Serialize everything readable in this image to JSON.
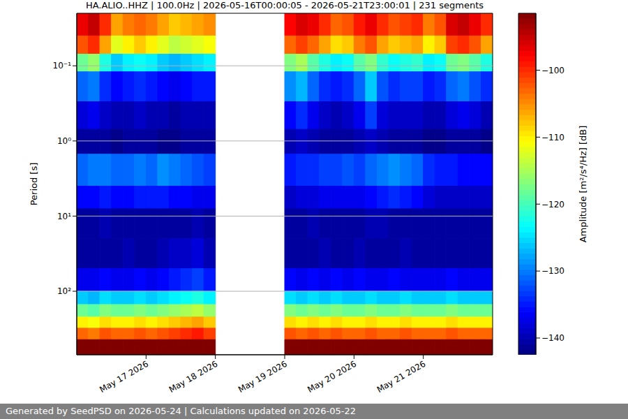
{
  "chart_data": {
    "type": "heatmap",
    "title": "HA.ALIO..HHZ | 100.0Hz | 2026-05-16T00:00:05 - 2026-05-21T23:00:01 | 231 segments",
    "ylabel": "Period [s]",
    "log": "y",
    "grid": true,
    "xlim": [
      "2026-05-16T00:00:00Z",
      "2026-05-22T00:00:00Z"
    ],
    "xticks": [
      {
        "value": "2026-05-17T00:00:00Z",
        "label": "May 17 2026"
      },
      {
        "value": "2026-05-18T00:00:00Z",
        "label": "May 18 2026"
      },
      {
        "value": "2026-05-19T00:00:00Z",
        "label": "May 19 2026"
      },
      {
        "value": "2026-05-20T00:00:00Z",
        "label": "May 20 2026"
      },
      {
        "value": "2026-05-21T00:00:00Z",
        "label": "May 21 2026"
      }
    ],
    "ylim": [
      0.02,
      700
    ],
    "yticks": [
      {
        "value": 0.1,
        "label": "10⁻¹"
      },
      {
        "value": 1,
        "label": "10⁰"
      },
      {
        "value": 10,
        "label": "10¹"
      },
      {
        "value": 100,
        "label": "10²"
      }
    ],
    "x_edges": [
      "2026-05-16T00:00:00Z",
      "2026-05-16T04:00:00Z",
      "2026-05-16T08:00:00Z",
      "2026-05-16T12:00:00Z",
      "2026-05-16T16:00:00Z",
      "2026-05-16T20:00:00Z",
      "2026-05-17T00:00:00Z",
      "2026-05-17T04:00:00Z",
      "2026-05-17T08:00:00Z",
      "2026-05-17T12:00:00Z",
      "2026-05-17T16:00:00Z",
      "2026-05-17T20:00:00Z",
      "2026-05-18T00:00:00Z",
      "2026-05-18T04:00:00Z",
      "2026-05-18T08:00:00Z",
      "2026-05-18T12:00:00Z",
      "2026-05-18T16:00:00Z",
      "2026-05-18T20:00:00Z",
      "2026-05-19T00:00:00Z",
      "2026-05-19T04:00:00Z",
      "2026-05-19T08:00:00Z",
      "2026-05-19T12:00:00Z",
      "2026-05-19T16:00:00Z",
      "2026-05-19T20:00:00Z",
      "2026-05-20T00:00:00Z",
      "2026-05-20T04:00:00Z",
      "2026-05-20T08:00:00Z",
      "2026-05-20T12:00:00Z",
      "2026-05-20T16:00:00Z",
      "2026-05-20T20:00:00Z",
      "2026-05-21T00:00:00Z",
      "2026-05-21T04:00:00Z",
      "2026-05-21T08:00:00Z",
      "2026-05-21T12:00:00Z",
      "2026-05-21T16:00:00Z",
      "2026-05-21T20:00:00Z",
      "2026-05-22T00:00:00Z"
    ],
    "y_edges": [
      0.02,
      0.04,
      0.07,
      0.12,
      0.3,
      0.7,
      1.5,
      4,
      8,
      20,
      50,
      100,
      150,
      220,
      310,
      440,
      700
    ],
    "cells": [
      [
        -97,
        -95,
        -100,
        -106,
        -104,
        -103,
        -104,
        -106,
        -108,
        -107,
        -106,
        -105,
        null,
        null,
        null,
        null,
        null,
        null,
        -98,
        -96,
        -97,
        -100,
        -103,
        -102,
        -99,
        -97,
        -100,
        -102,
        -101,
        -100,
        -104,
        -102,
        -96,
        -95,
        -97,
        -100
      ],
      [
        -102,
        -100,
        -106,
        -112,
        -110,
        -108,
        -110,
        -112,
        -114,
        -113,
        -112,
        -111,
        null,
        null,
        null,
        null,
        null,
        null,
        -103,
        -101,
        -103,
        -106,
        -109,
        -108,
        -104,
        -102,
        -106,
        -108,
        -107,
        -106,
        -110,
        -108,
        -101,
        -100,
        -102,
        -106
      ],
      [
        -118,
        -116,
        -122,
        -126,
        -124,
        -123,
        -124,
        -126,
        -127,
        -126,
        -125,
        -124,
        null,
        null,
        null,
        null,
        null,
        null,
        -117,
        -115,
        -119,
        -122,
        -124,
        -123,
        -119,
        -117,
        -121,
        -123,
        -122,
        -121,
        -124,
        -123,
        -118,
        -117,
        -119,
        -122
      ],
      [
        -131,
        -130,
        -134,
        -136,
        -135,
        -134,
        -135,
        -136,
        -137,
        -136,
        -135,
        -135,
        null,
        null,
        null,
        null,
        null,
        null,
        -129,
        -127,
        -131,
        -134,
        -135,
        -134,
        -131,
        -126,
        -132,
        -134,
        -133,
        -133,
        -135,
        -134,
        -131,
        -130,
        -132,
        -134
      ],
      [
        -138,
        -137,
        -139,
        -140,
        -140,
        -139,
        -140,
        -140,
        -141,
        -140,
        -140,
        -140,
        null,
        null,
        null,
        null,
        null,
        null,
        -136,
        -134,
        -137,
        -139,
        -140,
        -139,
        -137,
        -133,
        -138,
        -139,
        -139,
        -139,
        -140,
        -140,
        -138,
        -137,
        -138,
        -140
      ],
      [
        -141,
        -141,
        -141,
        -142,
        -141,
        -141,
        -141,
        -142,
        -142,
        -141,
        -141,
        -141,
        null,
        null,
        null,
        null,
        null,
        null,
        -140,
        -139,
        -140,
        -141,
        -141,
        -141,
        -140,
        -139,
        -140,
        -141,
        -141,
        -141,
        -142,
        -142,
        -141,
        -141,
        -141,
        -142
      ],
      [
        -131,
        -130,
        -130,
        -131,
        -131,
        -130,
        -131,
        -129,
        -130,
        -131,
        -132,
        -133,
        null,
        null,
        null,
        null,
        null,
        null,
        -135,
        -134,
        -134,
        -133,
        -133,
        -132,
        -133,
        -131,
        -130,
        -129,
        -130,
        -131,
        -134,
        -135,
        -135,
        -136,
        -136,
        -136
      ],
      [
        -136,
        -136,
        -135,
        -136,
        -136,
        -135,
        -135,
        -135,
        -136,
        -136,
        -137,
        -137,
        null,
        null,
        null,
        null,
        null,
        null,
        -139,
        -138,
        -138,
        -137,
        -137,
        -137,
        -137,
        -136,
        -135,
        -134,
        -135,
        -136,
        -138,
        -139,
        -139,
        -139,
        -139,
        -139
      ],
      [
        -141,
        -141,
        -140,
        -141,
        -141,
        -141,
        -141,
        -141,
        -141,
        -141,
        -140,
        -141,
        null,
        null,
        null,
        null,
        null,
        null,
        -141,
        -141,
        -140,
        -141,
        -141,
        -141,
        -141,
        -140,
        -140,
        -141,
        -141,
        -141,
        -141,
        -141,
        -141,
        -141,
        -141,
        -141
      ],
      [
        -141,
        -141,
        -141,
        -141,
        -140,
        -141,
        -141,
        -140,
        -139,
        -139,
        -138,
        -140,
        null,
        null,
        null,
        null,
        null,
        null,
        -141,
        -141,
        -141,
        -140,
        -141,
        -141,
        -140,
        -141,
        -141,
        -141,
        -140,
        -141,
        -141,
        -141,
        -141,
        -141,
        -141,
        -141
      ],
      [
        -137,
        -137,
        -136,
        -137,
        -137,
        -136,
        -137,
        -136,
        -135,
        -134,
        -133,
        -135,
        null,
        null,
        null,
        null,
        null,
        null,
        -136,
        -137,
        -136,
        -137,
        -136,
        -137,
        -136,
        -137,
        -137,
        -136,
        -137,
        -137,
        -137,
        -137,
        -136,
        -137,
        -137,
        -137
      ],
      [
        -126,
        -127,
        -125,
        -126,
        -126,
        -125,
        -126,
        -125,
        -124,
        -123,
        -122,
        -124,
        null,
        null,
        null,
        null,
        null,
        null,
        -125,
        -126,
        -125,
        -126,
        -125,
        -126,
        -126,
        -125,
        -126,
        -126,
        -125,
        -126,
        -126,
        -126,
        -125,
        -126,
        -126,
        -126
      ],
      [
        -118,
        -119,
        -117,
        -118,
        -118,
        -117,
        -118,
        -117,
        -116,
        -115,
        -114,
        -116,
        null,
        null,
        null,
        null,
        null,
        null,
        -117,
        -118,
        -117,
        -118,
        -117,
        -118,
        -118,
        -117,
        -118,
        -118,
        -117,
        -118,
        -118,
        -118,
        -117,
        -118,
        -118,
        -118
      ],
      [
        -110,
        -111,
        -109,
        -110,
        -110,
        -109,
        -110,
        -109,
        -108,
        -107,
        -106,
        -108,
        null,
        null,
        null,
        null,
        null,
        null,
        -109,
        -110,
        -109,
        -110,
        -109,
        -110,
        -110,
        -109,
        -110,
        -110,
        -109,
        -110,
        -110,
        -110,
        -109,
        -110,
        -110,
        -110
      ],
      [
        -103,
        -104,
        -102,
        -103,
        -103,
        -102,
        -103,
        -102,
        -101,
        -100,
        -99,
        -101,
        null,
        null,
        null,
        null,
        null,
        null,
        -102,
        -103,
        -102,
        -103,
        -102,
        -103,
        -103,
        -102,
        -103,
        -103,
        -102,
        -103,
        -103,
        -103,
        -102,
        -103,
        -103,
        -103
      ],
      [
        -91,
        -91,
        -91,
        -91,
        -91,
        -91,
        -91,
        -91,
        -91,
        -91,
        -91,
        -91,
        null,
        null,
        null,
        null,
        null,
        null,
        -91,
        -91,
        -91,
        -91,
        -91,
        -91,
        -91,
        -91,
        -91,
        -91,
        -91,
        -91,
        -91,
        -91,
        -91,
        -91,
        -91,
        -91
      ]
    ],
    "colorbar": {
      "label": "Amplitude [m²/s⁴/Hz] [dB]",
      "range": [
        -142.5,
        -91.5
      ],
      "ticks": [
        {
          "value": -140,
          "label": "−140"
        },
        {
          "value": -130,
          "label": "−130"
        },
        {
          "value": -120,
          "label": "−120"
        },
        {
          "value": -110,
          "label": "−110"
        },
        {
          "value": -100,
          "label": "−100"
        }
      ]
    }
  },
  "footer": "Generated by SeedPSD on 2026-05-24 | Calculations updated on 2026-05-22"
}
